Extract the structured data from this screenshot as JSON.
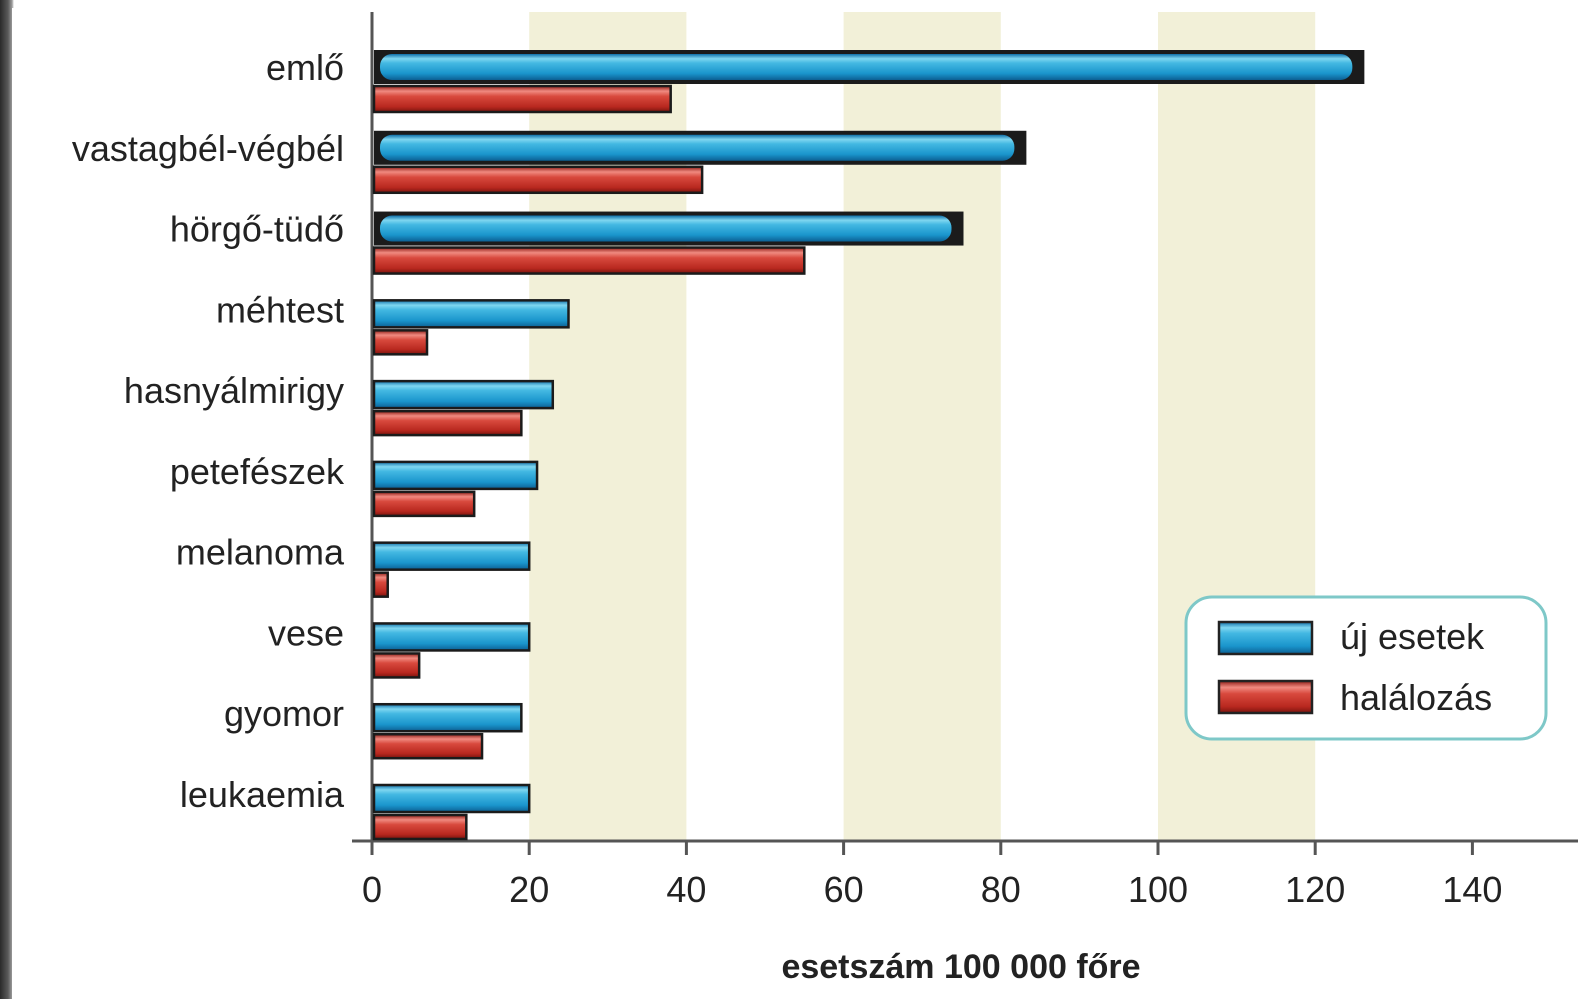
{
  "chart_data": {
    "type": "bar",
    "orientation": "horizontal",
    "categories": [
      "emlő",
      "vastagbél-végbél",
      "hörgő-tüdő",
      "méhtest",
      "hasnyálmirigy",
      "petefészek",
      "melanoma",
      "vese",
      "gyomor",
      "leukaemia"
    ],
    "series": [
      {
        "name": "új esetek",
        "values": [
          126,
          83,
          75,
          25,
          23,
          21,
          20,
          20,
          19,
          20
        ]
      },
      {
        "name": "halálozás",
        "values": [
          38,
          42,
          55,
          7,
          19,
          13,
          2,
          6,
          14,
          12
        ]
      }
    ],
    "xlabel": "esetszám 100 000 főre",
    "ylabel": "",
    "xlim": [
      0,
      150
    ],
    "xticks": [
      "0",
      "20",
      "40",
      "60",
      "80",
      "100",
      "120",
      "140"
    ],
    "shaded_bands": [
      [
        20,
        40
      ],
      [
        60,
        80
      ],
      [
        100,
        120
      ]
    ],
    "legend_position": "bottom-right",
    "colors": {
      "series_0": "#1e9ad0",
      "series_1": "#c8342a",
      "band": "#f2f0d8",
      "legend_border": "#7ec8c8"
    }
  }
}
